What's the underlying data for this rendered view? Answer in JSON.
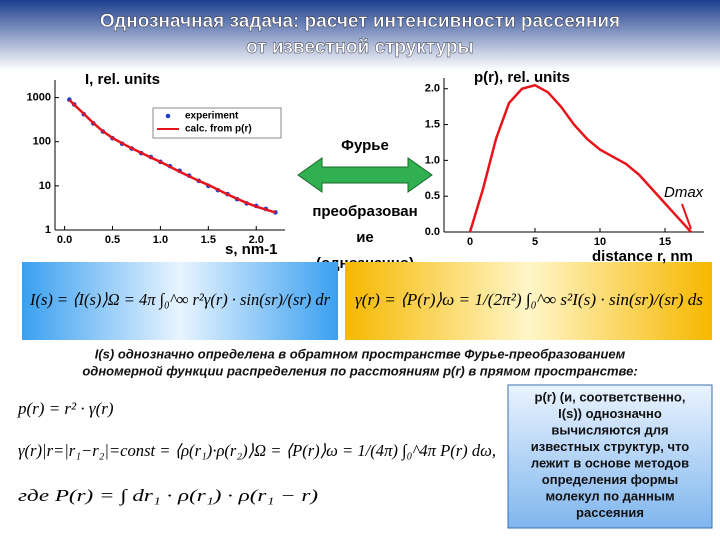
{
  "title": [
    "Однозначная задача: расчет интенсивности рассеяния",
    "от известной структуры"
  ],
  "transform": {
    "label": "Фурье",
    "text": [
      "преобразован",
      "ие",
      "(однозначно)"
    ]
  },
  "formulas": {
    "intensity": "I(s) = ⟨I(s)⟩Ω = 4π ∫₀^∞ r²γ(r) · sin(sr)/(sr) dr",
    "distribution": "γ(r) = ⟨P(r)⟩ω = 1/(2π²) ∫₀^∞ s²I(s) · sin(sr)/(sr) ds"
  },
  "paragraph": [
    "I(s) однозначно определена в обратном пространстве Фурье-преобразованием",
    "одномерной функции распределения по расстояниям p(r) в прямом пространстве:"
  ],
  "equations": [
    "p(r) = r² · γ(r)",
    "γ(r)|r=|r₁−r₂|=const = ⟨ρ(r₁)·ρ(r₂)⟩Ω = ⟨P(r)⟩ω = 1/(4π) ∫₀^4π P(r) dω,",
    "где     P(r) = ∫ dr₁ · ρ(r₁) · ρ(r₁ − r)"
  ],
  "note": [
    "p(r)  (и, соответственно,",
    "I(s)) однозначно",
    "вычисляются для",
    "известных структур, что",
    "лежит в основе методов",
    "определения формы",
    "молекул по данным",
    "рассеяния"
  ],
  "chart_data": [
    {
      "type": "line",
      "ylabel": "I, rel. units",
      "xlabel": "s, nm-1",
      "log_y": true,
      "legend": "upper right",
      "x": [
        0.05,
        0.1,
        0.2,
        0.3,
        0.4,
        0.5,
        0.6,
        0.7,
        0.8,
        0.9,
        1.0,
        1.1,
        1.2,
        1.3,
        1.4,
        1.5,
        1.6,
        1.7,
        1.8,
        1.9,
        2.0,
        2.1,
        2.2
      ],
      "series": [
        {
          "name": "experiment",
          "color": "#1f3fd0",
          "markers": true,
          "values": [
            900,
            700,
            420,
            260,
            170,
            120,
            90,
            70,
            55,
            45,
            35,
            28,
            22,
            17,
            13,
            10,
            8,
            6.5,
            5,
            4,
            3.5,
            3,
            2.5
          ]
        },
        {
          "name": "calc. from p(r)",
          "color": "#e8141b",
          "markers": false,
          "values": [
            880,
            690,
            430,
            265,
            172,
            122,
            92,
            71,
            56,
            44,
            35,
            27,
            21,
            16.5,
            13,
            10.5,
            8.2,
            6.4,
            5.1,
            4.1,
            3.4,
            2.9,
            2.5
          ]
        }
      ],
      "xlim": [
        -0.1,
        2.3
      ],
      "xticks": [
        {
          "value": 0,
          "label": "0.0"
        },
        0.5,
        {
          "value": 1,
          "label": "1.0"
        },
        1.5,
        {
          "value": 2,
          "label": "2.0"
        }
      ],
      "ylim": [
        1,
        2500
      ],
      "yticks": [
        1,
        10,
        100,
        1000
      ]
    },
    {
      "type": "line",
      "ylabel": "p(r), rel. units",
      "xlabel": "distance r, nm",
      "annotation": "Dmax",
      "x": [
        0,
        1,
        2,
        3,
        4,
        5,
        6,
        7,
        8,
        9,
        10,
        11,
        12,
        13,
        14,
        15,
        16,
        17
      ],
      "series": [
        {
          "color": "#e8141b",
          "values": [
            0,
            0.6,
            1.3,
            1.8,
            2.0,
            2.05,
            1.95,
            1.75,
            1.5,
            1.3,
            1.15,
            1.05,
            0.95,
            0.8,
            0.6,
            0.4,
            0.2,
            0
          ]
        }
      ],
      "xlim": [
        -2,
        18
      ],
      "xticks": [
        0,
        5,
        10,
        15
      ],
      "ylim": [
        0,
        2.15
      ],
      "yticks": [
        {
          "value": 0,
          "label": "0.0"
        },
        0.5,
        {
          "value": 1,
          "label": "1.0"
        },
        1.5,
        {
          "value": 2,
          "label": "2.0"
        }
      ]
    }
  ]
}
